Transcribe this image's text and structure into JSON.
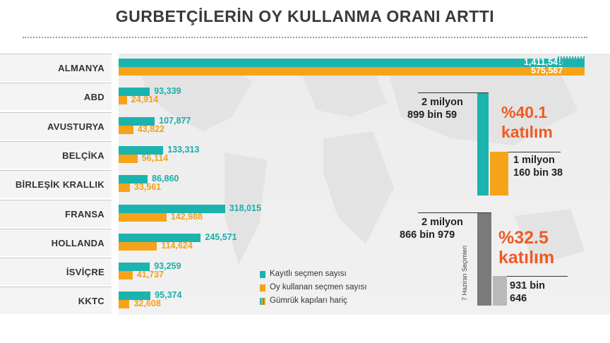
{
  "title": "GURBETÇİLERİN OY KULLANMA ORANI ARTTI",
  "colors": {
    "registered": "#1bb3ae",
    "voted": "#f6a31a",
    "accent": "#ee5b24",
    "previous_registered": "#7a7a7a",
    "previous_voted": "#b9b9b9"
  },
  "chart_data": [
    {
      "type": "bar",
      "orientation": "horizontal",
      "categories": [
        "ALMANYA",
        "ABD",
        "AVUSTURYA",
        "BELÇİKA",
        "BİRLEŞİK KRALLIK",
        "FRANSA",
        "HOLLANDA",
        "İSVİÇRE",
        "KKTC"
      ],
      "series": [
        {
          "name": "Kayıtlı seçmen sayısı",
          "values": [
            1411548,
            93339,
            107877,
            133313,
            86860,
            318015,
            245571,
            93259,
            95374
          ],
          "labels": [
            "1,411,548",
            "93,339",
            "107,877",
            "133,313",
            "86,860",
            "318,015",
            "245,571",
            "93,259",
            "95,374"
          ]
        },
        {
          "name": "Oy kullanan seçmen sayısı",
          "values": [
            575587,
            24914,
            43822,
            56114,
            33561,
            142988,
            114624,
            41737,
            32608
          ],
          "labels": [
            "575,587",
            "24,914",
            "43,822",
            "56,114",
            "33,561",
            "142,988",
            "114,624",
            "41,737",
            "32,608"
          ]
        }
      ],
      "legend": [
        {
          "label": "Kayıtlı seçmen sayısı",
          "color": "#1bb3ae"
        },
        {
          "label": "Oy kullanan seçmen sayısı",
          "color": "#f6a31a"
        },
        {
          "label": "Gümrük kapıları hariç",
          "color": "hatched"
        }
      ],
      "legend_position": "bottom-center"
    },
    {
      "type": "bar",
      "series": [
        {
          "registered_label_1": "2 milyon",
          "registered_label_2": "899 bin 59",
          "registered": 2899059,
          "voted_label_1": "1 milyon",
          "voted_label_2": "160 bin 38",
          "voted": 1160038,
          "turnout_pct": "%40.1",
          "turnout_word": "katılım"
        },
        {
          "period_label": "7 Haziran Seçimleri",
          "registered_label_1": "2 milyon",
          "registered_label_2": "866 bin 979",
          "registered": 2866979,
          "voted_label_1": "931 bin",
          "voted_label_2": "646",
          "voted": 931646,
          "turnout_pct": "%32.5",
          "turnout_word": "katılım"
        }
      ]
    }
  ]
}
